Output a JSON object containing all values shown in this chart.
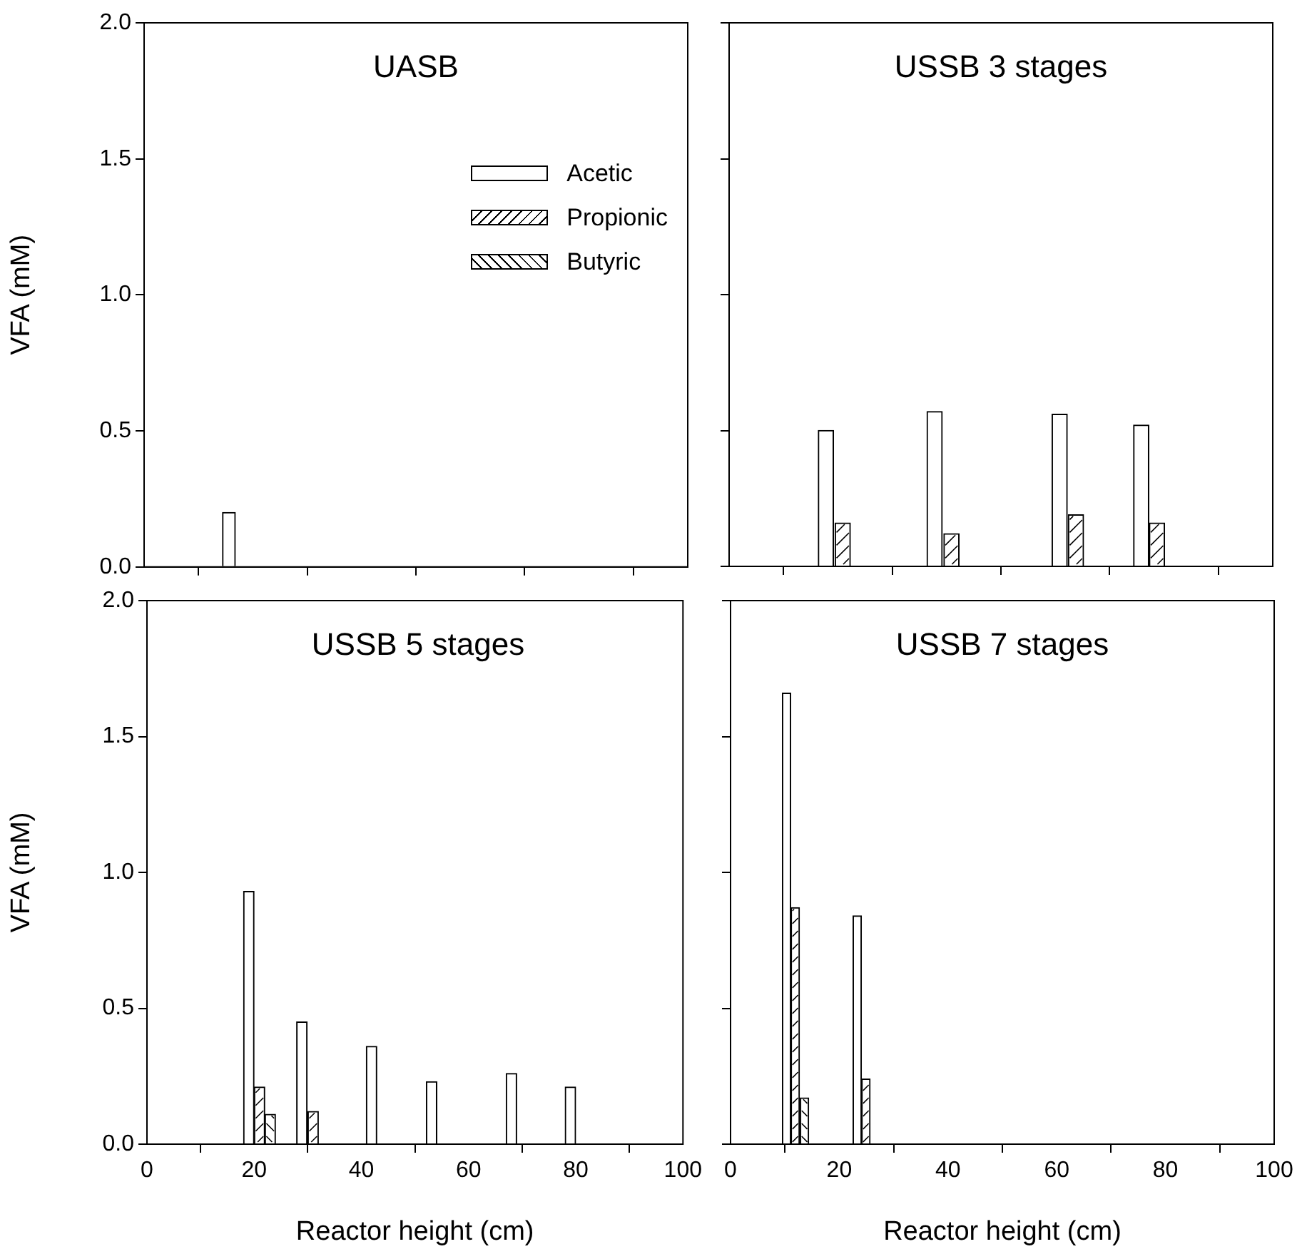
{
  "chart_data": [
    {
      "type": "bar",
      "title": "UASB",
      "ylabel": "VFA (mM)",
      "xlim": [
        0,
        100
      ],
      "xticks": [
        0,
        20,
        40,
        60,
        80,
        100
      ],
      "ylim": [
        0,
        2
      ],
      "yticks": [
        {
          "value": 0,
          "label": "0.0"
        },
        {
          "value": 0.5,
          "label": "0.5"
        },
        {
          "value": 1,
          "label": "1.0"
        },
        {
          "value": 1.5,
          "label": "1.5"
        },
        {
          "value": 2,
          "label": "2.0"
        }
      ],
      "tick_labels": "y",
      "grid": false,
      "legend": "top right",
      "series": [
        {
          "name": "Acetic",
          "color": "#ffffff",
          "x": [
            15.6
          ],
          "values": [
            0.2
          ]
        },
        {
          "name": "Propionic",
          "color": "#ffffff"
        },
        {
          "name": "Butyric",
          "color": "#ffffff"
        }
      ]
    },
    {
      "type": "bar",
      "title": "USSB 3 stages",
      "xlim": [
        0,
        100
      ],
      "xticks": [
        0,
        20,
        40,
        60,
        80,
        100
      ],
      "ylim": [
        0,
        2
      ],
      "yticks": [
        0,
        0.5,
        1,
        1.5,
        2
      ],
      "tick_labels": false,
      "grid": false,
      "series": [
        {
          "color": "#ffffff",
          "x": [
            17.8,
            37.8,
            60.8,
            75.8
          ],
          "values": [
            0.5,
            0.57,
            0.56,
            0.52
          ]
        },
        {
          "color": "#ffffff",
          "x": [
            20.9,
            40.9,
            63.8,
            78.7
          ],
          "values": [
            0.16,
            0.12,
            0.19,
            0.16
          ]
        }
      ]
    },
    {
      "type": "bar",
      "title": "USSB 5 stages",
      "xlabel": "Reactor height (cm)",
      "ylabel": "VFA (mM)",
      "xlim": [
        0,
        100
      ],
      "xticks": [
        0,
        20,
        40,
        60,
        80,
        100
      ],
      "ylim": [
        0,
        2
      ],
      "yticks": [
        {
          "value": 0,
          "label": "0.0"
        },
        {
          "value": 0.5,
          "label": "0.5"
        },
        {
          "value": 1,
          "label": "1.0"
        },
        {
          "value": 1.5,
          "label": "1.5"
        },
        {
          "value": 2,
          "label": "2.0"
        }
      ],
      "grid": false,
      "series": [
        {
          "color": "#ffffff",
          "x": [
            19,
            28.9,
            41.9,
            53.1,
            68,
            79
          ],
          "values": [
            0.93,
            0.45,
            0.36,
            0.23,
            0.26,
            0.21
          ]
        },
        {
          "color": "#ffffff",
          "x": [
            21,
            31
          ],
          "values": [
            0.21,
            0.12
          ]
        },
        {
          "color": "#ffffff",
          "x": [
            23
          ],
          "values": [
            0.11
          ]
        }
      ]
    },
    {
      "type": "bar",
      "title": "USSB 7 stages",
      "xlabel": "Reactor height (cm)",
      "xlim": [
        0,
        100
      ],
      "xticks": [
        0,
        20,
        40,
        60,
        80,
        100
      ],
      "ylim": [
        0,
        2
      ],
      "yticks": [
        0,
        0.5,
        1,
        1.5,
        2
      ],
      "tick_labels": "x",
      "grid": false,
      "series": [
        {
          "color": "#ffffff",
          "x": [
            10.3,
            23.3
          ],
          "values": [
            1.66,
            0.84
          ]
        },
        {
          "color": "#ffffff",
          "x": [
            11.9,
            24.9
          ],
          "values": [
            0.87,
            0.24
          ]
        },
        {
          "color": "#ffffff",
          "x": [
            13.6
          ],
          "values": [
            0.17
          ]
        }
      ]
    }
  ]
}
